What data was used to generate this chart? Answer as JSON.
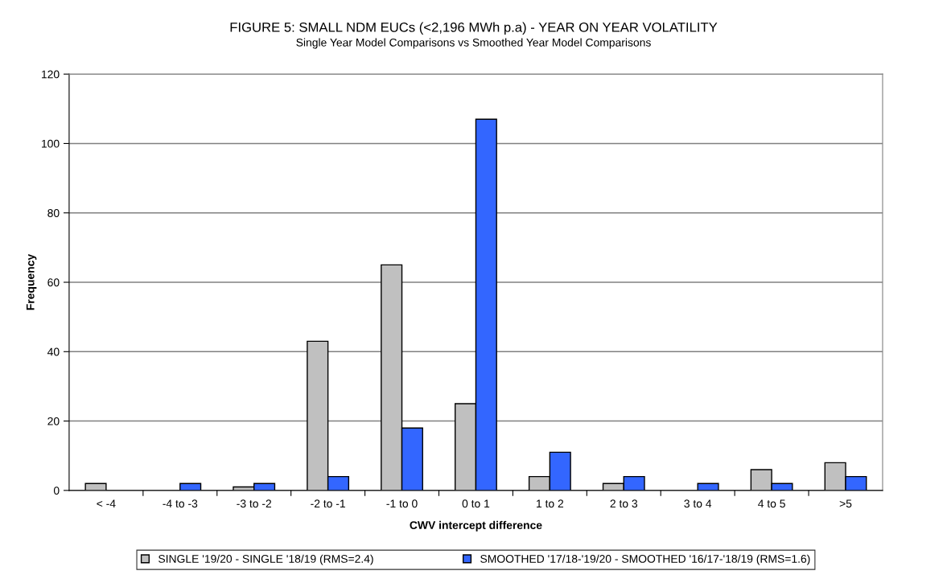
{
  "chart_data": {
    "type": "bar",
    "title": "FIGURE 5: SMALL NDM EUCs (<2,196 MWh p.a) - YEAR ON YEAR VOLATILITY",
    "subtitle": "Single Year Model Comparisons vs Smoothed Year Model Comparisons",
    "xlabel": "CWV intercept difference",
    "ylabel": "Frequency",
    "categories": [
      "< -4",
      "-4 to -3",
      "-3 to -2",
      "-2 to -1",
      "-1 to 0",
      "0 to 1",
      "1 to 2",
      "2 to 3",
      "3 to 4",
      "4 to 5",
      ">5"
    ],
    "series": [
      {
        "name": "SINGLE '19/20 - SINGLE '18/19 (RMS=2.4)",
        "color": "#c0c0c0",
        "values": [
          2,
          0,
          1,
          43,
          65,
          25,
          4,
          2,
          0,
          6,
          8
        ]
      },
      {
        "name": "SMOOTHED '17/18-'19/20 - SMOOTHED '16/17-'18/19 (RMS=1.6)",
        "color": "#3366ff",
        "values": [
          0,
          2,
          2,
          4,
          18,
          107,
          11,
          4,
          2,
          2,
          4
        ]
      }
    ],
    "ylim": [
      0,
      120
    ],
    "yticks": [
      0,
      20,
      40,
      60,
      80,
      100,
      120
    ],
    "grid": "y",
    "legend": "bottom"
  }
}
